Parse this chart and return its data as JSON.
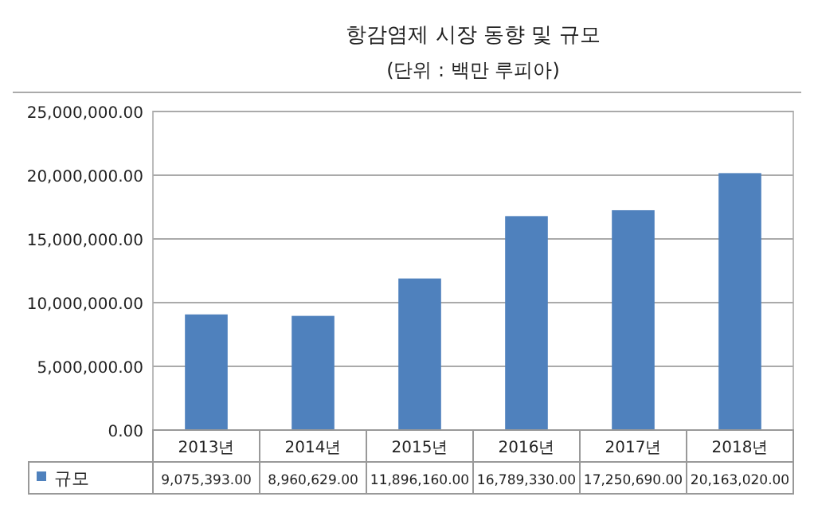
{
  "chart_data": {
    "type": "bar",
    "title": "항감염제 시장 동향 및 규모",
    "subtitle": "(단위 : 백만 루피아)",
    "categories": [
      "2013년",
      "2014년",
      "2015년",
      "2016년",
      "2017년",
      "2018년"
    ],
    "series": [
      {
        "name": "규모",
        "color": "#4f81bd",
        "values": [
          9075393,
          8960629,
          11896160,
          16789330,
          17250690,
          20163020
        ],
        "value_labels": [
          "9,075,393.00",
          "8,960,629.00",
          "11,896,160.00",
          "16,789,330.00",
          "17,250,690.00",
          "20,163,020.00"
        ]
      }
    ],
    "ylim": [
      0,
      25000000
    ],
    "yticks": [
      {
        "value": 0,
        "label": "0.00"
      },
      {
        "value": 5000000,
        "label": "5,000,000.00"
      },
      {
        "value": 10000000,
        "label": "10,000,000.00"
      },
      {
        "value": 15000000,
        "label": "15,000,000.00"
      },
      {
        "value": 20000000,
        "label": "20,000,000.00"
      },
      {
        "value": 25000000,
        "label": "25,000,000.00"
      }
    ],
    "grid": "y",
    "legend": "bottom"
  }
}
